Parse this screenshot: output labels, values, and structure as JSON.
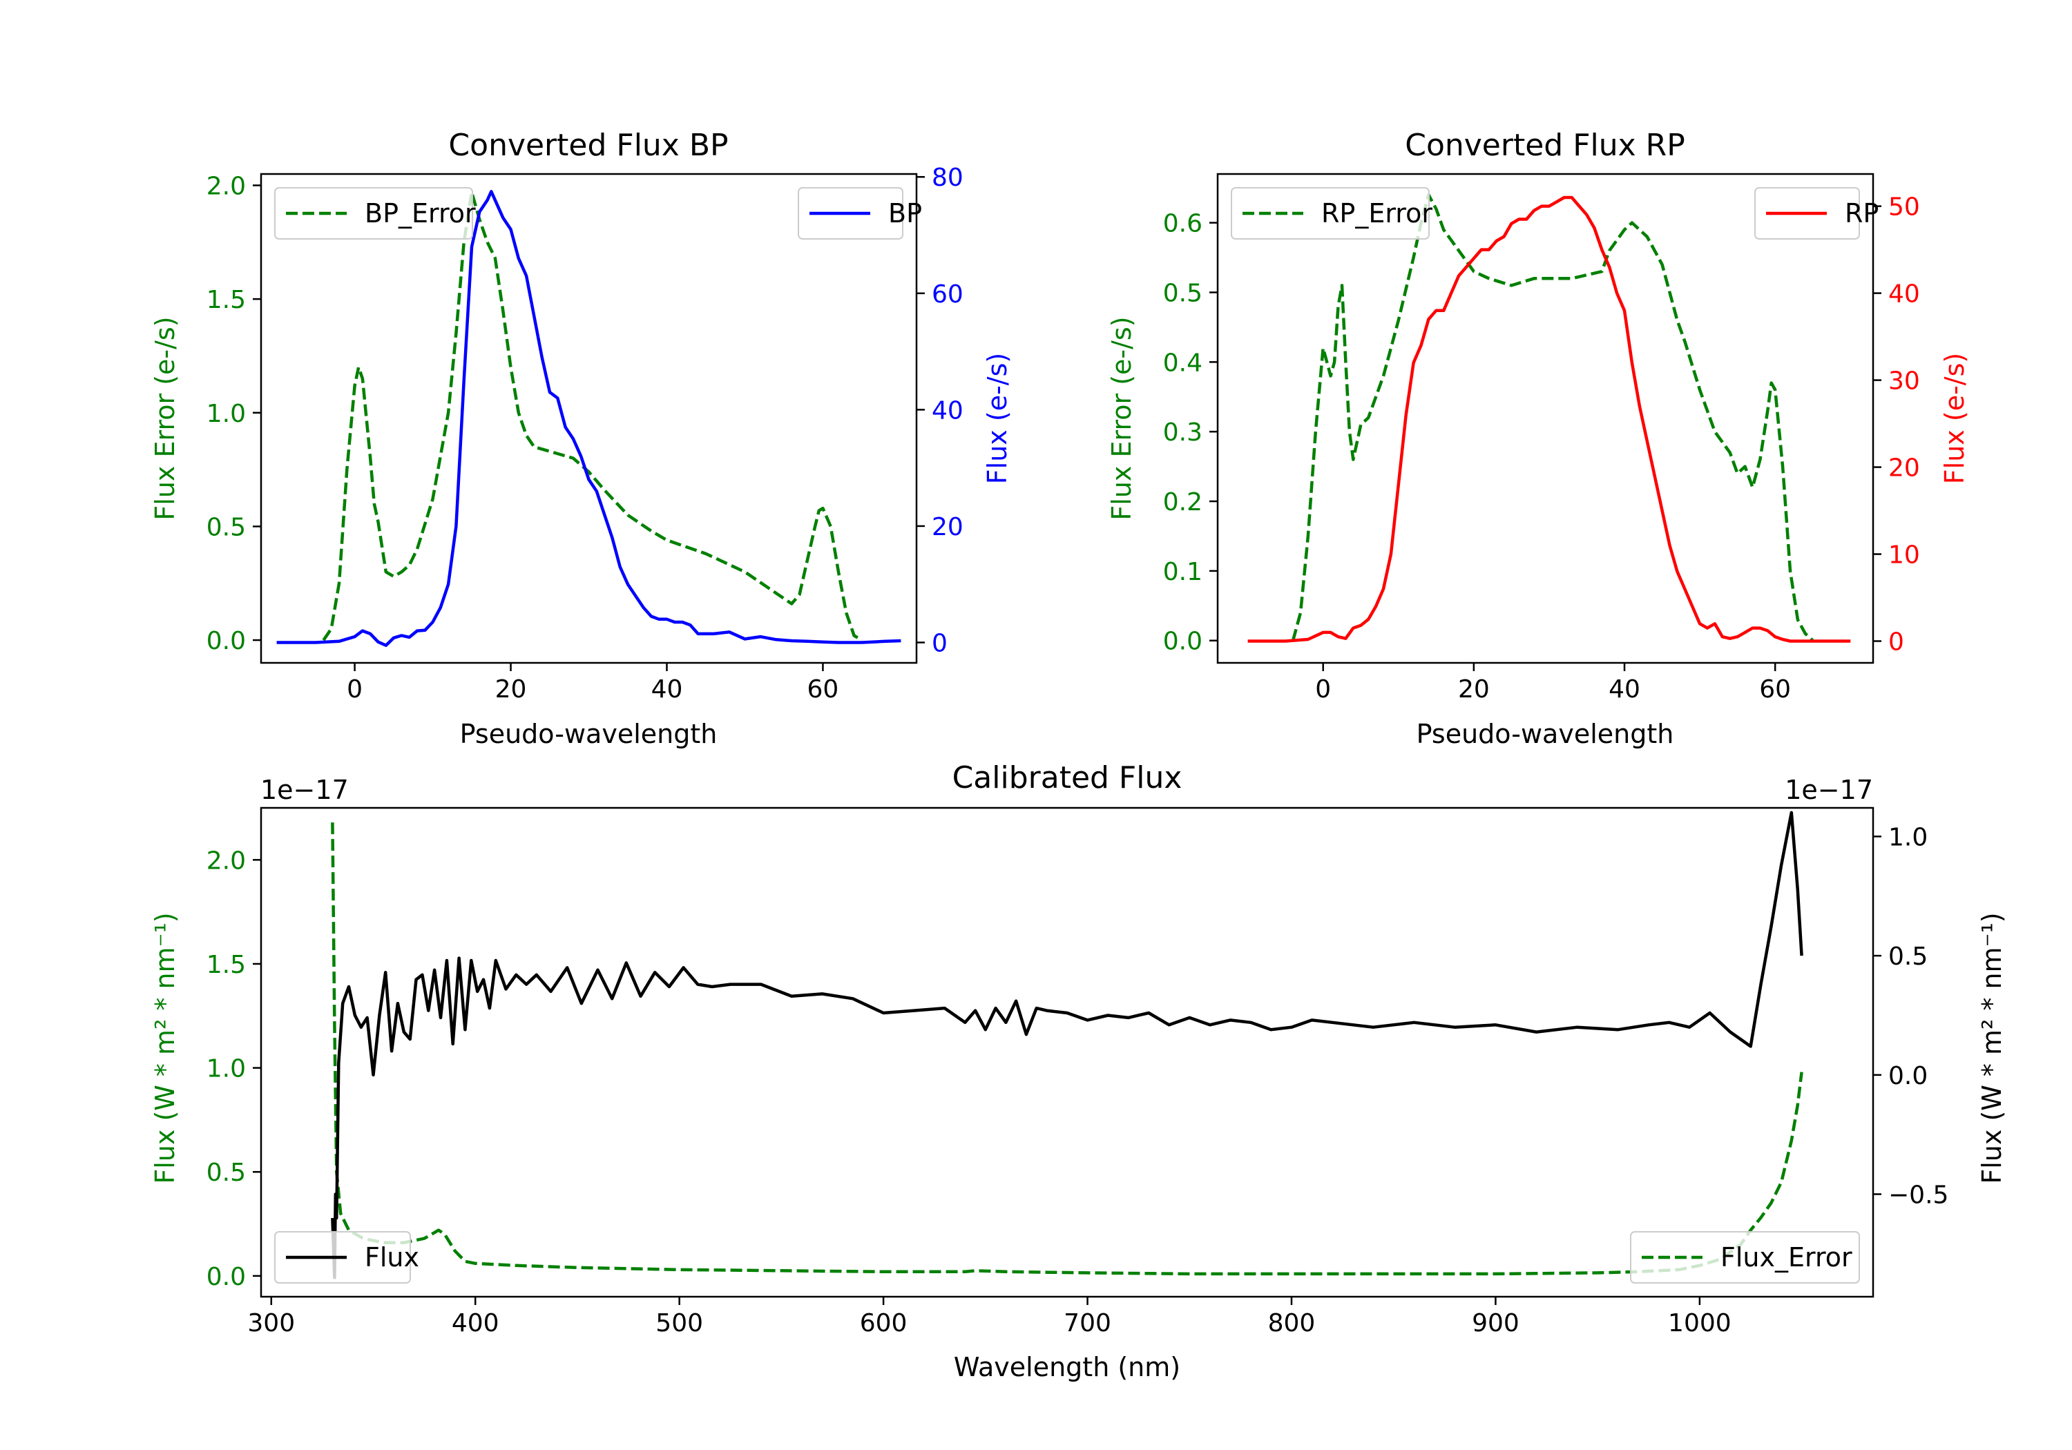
{
  "chart_data": [
    {
      "id": "bp",
      "type": "line",
      "title": "Converted Flux BP",
      "xlabel": "Pseudo-wavelength",
      "xlim": [
        -12,
        72
      ],
      "xticks": [
        0,
        20,
        40,
        60
      ],
      "left_axis": {
        "label": "Flux Error (e-/s)",
        "color": "#008000",
        "ylim": [
          -0.1,
          2.05
        ],
        "ticks": [
          0.0,
          0.5,
          1.0,
          1.5,
          2.0
        ],
        "tick_labels": [
          "0.0",
          "0.5",
          "1.0",
          "1.5",
          "2.0"
        ]
      },
      "right_axis": {
        "label": "Flux (e-/s)",
        "color": "#0000ff",
        "ylim": [
          -3.5,
          80.5
        ],
        "ticks": [
          0,
          20,
          40,
          60,
          80
        ],
        "tick_labels": [
          "0",
          "20",
          "40",
          "60",
          "80"
        ]
      },
      "series": [
        {
          "name": "BP_Error",
          "axis": "left",
          "color": "#008000",
          "style": "dashed",
          "x": [
            -4,
            -3,
            -2,
            -1,
            0,
            0.5,
            1,
            2,
            2.5,
            3,
            4,
            5,
            6,
            7,
            8,
            10,
            12,
            13,
            14,
            15,
            16,
            17,
            18,
            19,
            20,
            21,
            22,
            23,
            25,
            28,
            30,
            32,
            35,
            38,
            40,
            45,
            50,
            53,
            56,
            57,
            58,
            59,
            59.5,
            60,
            61,
            62,
            63,
            64,
            65
          ],
          "values": [
            0.0,
            0.05,
            0.25,
            0.75,
            1.12,
            1.2,
            1.15,
            0.8,
            0.6,
            0.52,
            0.3,
            0.28,
            0.3,
            0.33,
            0.4,
            0.62,
            1.0,
            1.35,
            1.75,
            1.97,
            1.85,
            1.75,
            1.68,
            1.45,
            1.2,
            1.0,
            0.9,
            0.85,
            0.83,
            0.8,
            0.74,
            0.66,
            0.55,
            0.48,
            0.44,
            0.38,
            0.3,
            0.23,
            0.16,
            0.2,
            0.35,
            0.5,
            0.57,
            0.58,
            0.5,
            0.3,
            0.12,
            0.02,
            0.0
          ]
        },
        {
          "name": "BP",
          "axis": "right",
          "color": "#0000ff",
          "style": "solid",
          "x": [
            -10,
            -5,
            -2,
            0,
            1,
            2,
            3,
            4,
            5,
            6,
            7,
            8,
            9,
            10,
            11,
            12,
            13,
            14,
            15,
            16,
            17,
            17.5,
            18,
            19,
            20,
            21,
            22,
            23,
            24,
            25,
            26,
            27,
            28,
            29,
            30,
            31,
            32,
            33,
            34,
            35,
            36,
            37,
            38,
            39,
            40,
            41,
            42,
            43,
            44,
            45,
            46,
            48,
            50,
            52,
            54,
            56,
            58,
            60,
            62,
            65,
            68,
            70
          ],
          "values": [
            0,
            0,
            0.2,
            1.0,
            2.0,
            1.5,
            0.1,
            -0.5,
            0.8,
            1.2,
            0.9,
            2.0,
            2.1,
            3.5,
            6.0,
            10.0,
            20.0,
            45.0,
            68.0,
            74.0,
            76.0,
            77.5,
            76.0,
            73.0,
            71.0,
            66.0,
            63.0,
            56.0,
            49.0,
            43.0,
            42.0,
            37.0,
            35.0,
            32.0,
            28.0,
            26.0,
            22.0,
            18.0,
            13.0,
            10.0,
            8.0,
            6.0,
            4.5,
            4.0,
            4.0,
            3.5,
            3.5,
            3.0,
            1.5,
            1.5,
            1.5,
            1.8,
            0.6,
            1.0,
            0.5,
            0.3,
            0.2,
            0.1,
            0,
            0,
            0.2,
            0.3
          ]
        }
      ],
      "legends": [
        {
          "label": "BP_Error",
          "position": "upper-left"
        },
        {
          "label": "BP",
          "position": "upper-right"
        }
      ]
    },
    {
      "id": "rp",
      "type": "line",
      "title": "Converted Flux RP",
      "xlabel": "Pseudo-wavelength",
      "xlim": [
        -14,
        73
      ],
      "xticks": [
        0,
        20,
        40,
        60
      ],
      "left_axis": {
        "label": "Flux Error (e-/s)",
        "color": "#008000",
        "ylim": [
          -0.032,
          0.67
        ],
        "ticks": [
          0.0,
          0.1,
          0.2,
          0.3,
          0.4,
          0.5,
          0.6
        ],
        "tick_labels": [
          "0.0",
          "0.1",
          "0.2",
          "0.3",
          "0.4",
          "0.5",
          "0.6"
        ]
      },
      "right_axis": {
        "label": "Flux (e-/s)",
        "color": "#ff0000",
        "ylim": [
          -2.5,
          53.7
        ],
        "ticks": [
          0,
          10,
          20,
          30,
          40,
          50
        ],
        "tick_labels": [
          "0",
          "10",
          "20",
          "30",
          "40",
          "50"
        ]
      },
      "series": [
        {
          "name": "RP_Error",
          "axis": "left",
          "color": "#008000",
          "style": "dashed",
          "x": [
            -4,
            -3,
            -2,
            -1,
            0,
            0.5,
            1,
            1.5,
            2,
            2.5,
            3,
            3.5,
            4,
            5,
            6,
            8,
            10,
            12,
            13,
            14,
            15,
            16,
            18,
            20,
            22,
            25,
            28,
            30,
            33,
            35,
            37,
            38,
            40,
            41,
            42,
            43,
            45,
            47,
            48,
            50,
            52,
            54,
            55,
            56,
            57,
            58,
            59,
            59.5,
            60,
            61,
            62,
            63,
            64,
            65
          ],
          "values": [
            0.0,
            0.04,
            0.15,
            0.3,
            0.42,
            0.4,
            0.38,
            0.4,
            0.48,
            0.51,
            0.4,
            0.3,
            0.26,
            0.31,
            0.32,
            0.38,
            0.46,
            0.55,
            0.6,
            0.64,
            0.62,
            0.59,
            0.56,
            0.53,
            0.52,
            0.51,
            0.52,
            0.52,
            0.52,
            0.525,
            0.53,
            0.56,
            0.59,
            0.6,
            0.59,
            0.58,
            0.54,
            0.46,
            0.43,
            0.36,
            0.3,
            0.27,
            0.24,
            0.25,
            0.22,
            0.26,
            0.33,
            0.37,
            0.36,
            0.25,
            0.1,
            0.03,
            0.01,
            0.0
          ]
        },
        {
          "name": "RP",
          "axis": "right",
          "color": "#ff0000",
          "style": "solid",
          "x": [
            -10,
            -5,
            -2,
            0,
            1,
            2,
            3,
            4,
            5,
            6,
            7,
            8,
            9,
            10,
            11,
            12,
            13,
            14,
            15,
            16,
            17,
            18,
            19,
            20,
            21,
            22,
            23,
            24,
            25,
            26,
            27,
            28,
            29,
            30,
            31,
            32,
            33,
            34,
            35,
            36,
            37,
            38,
            39,
            40,
            41,
            42,
            43,
            44,
            45,
            46,
            47,
            48,
            49,
            50,
            51,
            52,
            53,
            54,
            55,
            56,
            57,
            58,
            59,
            60,
            61,
            62,
            64,
            66,
            70
          ],
          "values": [
            0,
            0,
            0.2,
            1.0,
            1.0,
            0.5,
            0.3,
            1.5,
            1.8,
            2.5,
            4.0,
            6.0,
            10.0,
            18.0,
            26.0,
            32.0,
            34.0,
            37.0,
            38.0,
            38.0,
            40.0,
            42.0,
            43.0,
            44.0,
            45.0,
            45.0,
            46.0,
            46.5,
            48.0,
            48.5,
            48.5,
            49.5,
            50.0,
            50.0,
            50.5,
            51.0,
            51.0,
            50.0,
            49.0,
            47.5,
            45.0,
            43.0,
            40.0,
            38.0,
            32.0,
            27.0,
            23.0,
            19.0,
            15.0,
            11.0,
            8.0,
            6.0,
            4.0,
            2.0,
            1.5,
            2.0,
            0.5,
            0.3,
            0.5,
            1.0,
            1.5,
            1.5,
            1.2,
            0.5,
            0.2,
            0.0,
            0,
            0,
            0
          ]
        }
      ],
      "legends": [
        {
          "label": "RP_Error",
          "position": "upper-left"
        },
        {
          "label": "RP",
          "position": "upper-right"
        }
      ]
    },
    {
      "id": "cal",
      "type": "line",
      "title": "Calibrated Flux",
      "xlabel": "Wavelength (nm)",
      "xlim": [
        295,
        1085
      ],
      "xticks": [
        300,
        400,
        500,
        600,
        700,
        800,
        900,
        1000
      ],
      "left_axis": {
        "label": "Flux (W * m² * nm⁻¹)",
        "color": "#008000",
        "ylim": [
          -0.1,
          2.25
        ],
        "ticks": [
          0.0,
          0.5,
          1.0,
          1.5,
          2.0
        ],
        "tick_labels": [
          "0.0",
          "0.5",
          "1.0",
          "1.5",
          "2.0"
        ],
        "offset_label": "1e−17"
      },
      "right_axis": {
        "label": "Flux (W * m² * nm⁻¹)",
        "color": "#000000",
        "ylim": [
          -0.93,
          1.12
        ],
        "ticks": [
          -0.5,
          0.0,
          0.5,
          1.0
        ],
        "tick_labels": [
          "−0.5",
          "0.0",
          "0.5",
          "1.0"
        ],
        "offset_label": "1e−17"
      },
      "series": [
        {
          "name": "Flux_Error",
          "axis": "left",
          "color": "#008000",
          "style": "dashed",
          "x": [
            330,
            331,
            332,
            334,
            338,
            345,
            355,
            365,
            375,
            382,
            385,
            390,
            395,
            400,
            420,
            450,
            500,
            550,
            600,
            640,
            645,
            660,
            700,
            750,
            800,
            850,
            900,
            950,
            970,
            990,
            1000,
            1010,
            1020,
            1025,
            1030,
            1035,
            1040,
            1045,
            1048,
            1050
          ],
          "values": [
            2.18,
            1.2,
            0.5,
            0.3,
            0.22,
            0.18,
            0.16,
            0.16,
            0.18,
            0.22,
            0.2,
            0.12,
            0.07,
            0.06,
            0.05,
            0.04,
            0.03,
            0.025,
            0.02,
            0.02,
            0.025,
            0.02,
            0.015,
            0.01,
            0.01,
            0.01,
            0.01,
            0.015,
            0.02,
            0.03,
            0.05,
            0.08,
            0.15,
            0.22,
            0.28,
            0.35,
            0.45,
            0.65,
            0.82,
            0.98
          ]
        },
        {
          "name": "Flux",
          "axis": "right",
          "color": "#000000",
          "style": "solid",
          "x": [
            330,
            331,
            331.5,
            332,
            333,
            335,
            338,
            341,
            344,
            347,
            350,
            353,
            356,
            359,
            362,
            365,
            368,
            371,
            374,
            377,
            380,
            383,
            386,
            389,
            392,
            395,
            398,
            401,
            404,
            407,
            410,
            415,
            420,
            425,
            430,
            437,
            445,
            452,
            460,
            467,
            474,
            481,
            488,
            495,
            502,
            509,
            516,
            525,
            540,
            555,
            570,
            585,
            600,
            615,
            630,
            640,
            645,
            650,
            655,
            660,
            665,
            670,
            675,
            680,
            690,
            700,
            710,
            720,
            730,
            740,
            750,
            760,
            770,
            780,
            790,
            800,
            810,
            820,
            840,
            860,
            880,
            900,
            920,
            940,
            960,
            975,
            985,
            995,
            1005,
            1015,
            1020,
            1025,
            1030,
            1035,
            1040,
            1045,
            1048,
            1050
          ],
          "values": [
            -0.6,
            -0.85,
            -0.5,
            -0.6,
            0.05,
            0.3,
            0.37,
            0.25,
            0.2,
            0.24,
            0.0,
            0.25,
            0.43,
            0.1,
            0.3,
            0.18,
            0.15,
            0.4,
            0.42,
            0.27,
            0.44,
            0.24,
            0.48,
            0.13,
            0.49,
            0.19,
            0.48,
            0.35,
            0.4,
            0.28,
            0.48,
            0.36,
            0.42,
            0.38,
            0.42,
            0.35,
            0.45,
            0.3,
            0.44,
            0.32,
            0.47,
            0.33,
            0.43,
            0.37,
            0.45,
            0.38,
            0.37,
            0.38,
            0.38,
            0.33,
            0.34,
            0.32,
            0.26,
            0.27,
            0.28,
            0.22,
            0.27,
            0.19,
            0.28,
            0.22,
            0.31,
            0.17,
            0.28,
            0.27,
            0.26,
            0.23,
            0.25,
            0.24,
            0.26,
            0.21,
            0.24,
            0.21,
            0.23,
            0.22,
            0.19,
            0.2,
            0.23,
            0.22,
            0.2,
            0.22,
            0.2,
            0.21,
            0.18,
            0.2,
            0.19,
            0.21,
            0.22,
            0.2,
            0.26,
            0.18,
            0.15,
            0.12,
            0.38,
            0.62,
            0.88,
            1.1,
            0.78,
            0.5
          ]
        }
      ],
      "legends": [
        {
          "label": "Flux",
          "position": "lower-left"
        },
        {
          "label": "Flux_Error",
          "position": "lower-right"
        }
      ]
    }
  ]
}
